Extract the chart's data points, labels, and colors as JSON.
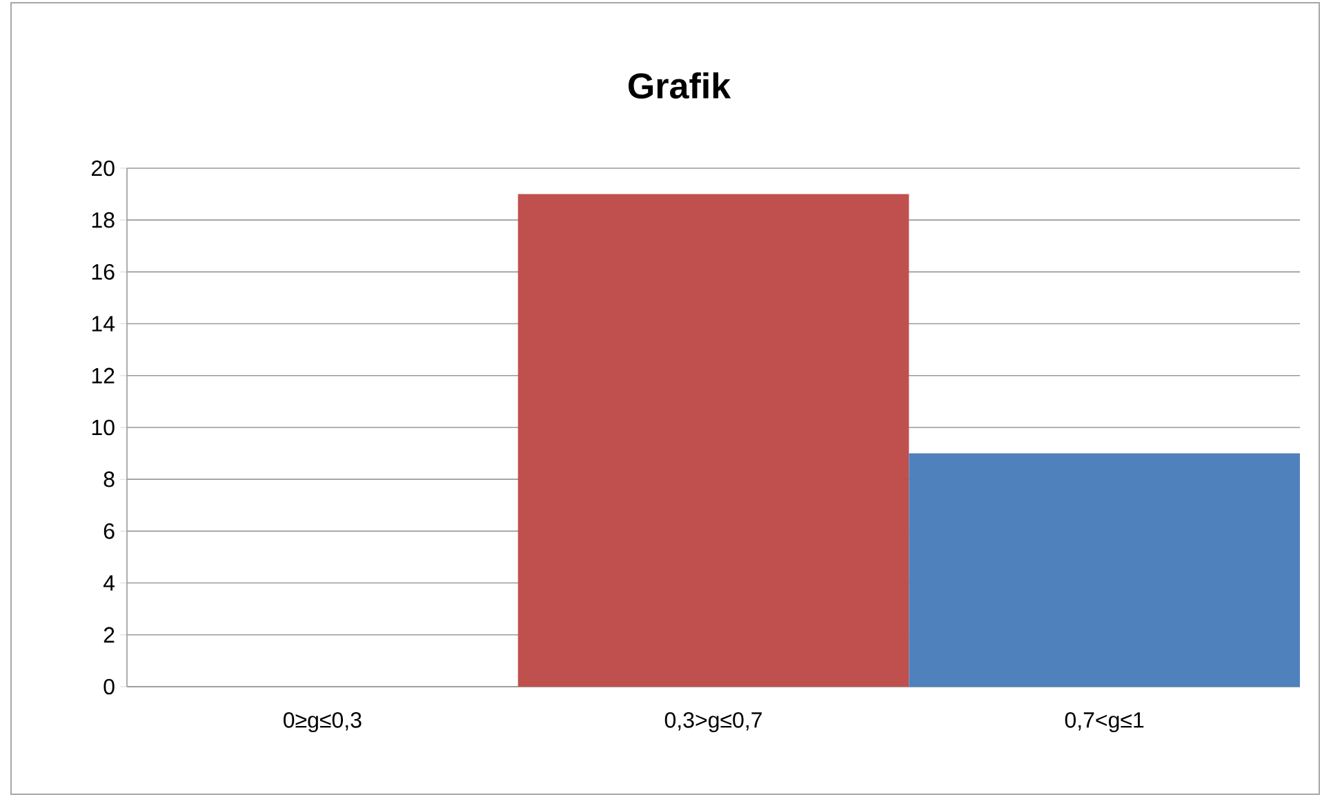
{
  "chart_data": {
    "type": "bar",
    "title": "Grafik",
    "categories": [
      "0≥g≤0,3",
      "0,3>g≤0,7",
      "0,7<g≤1"
    ],
    "values": [
      0,
      19,
      9
    ],
    "colors": [
      "#4f81bd",
      "#c0504d",
      "#4f81bd"
    ],
    "ylim": [
      0,
      20
    ],
    "yticks": [
      0,
      2,
      4,
      6,
      8,
      10,
      12,
      14,
      16,
      18,
      20
    ],
    "grid": "y"
  }
}
